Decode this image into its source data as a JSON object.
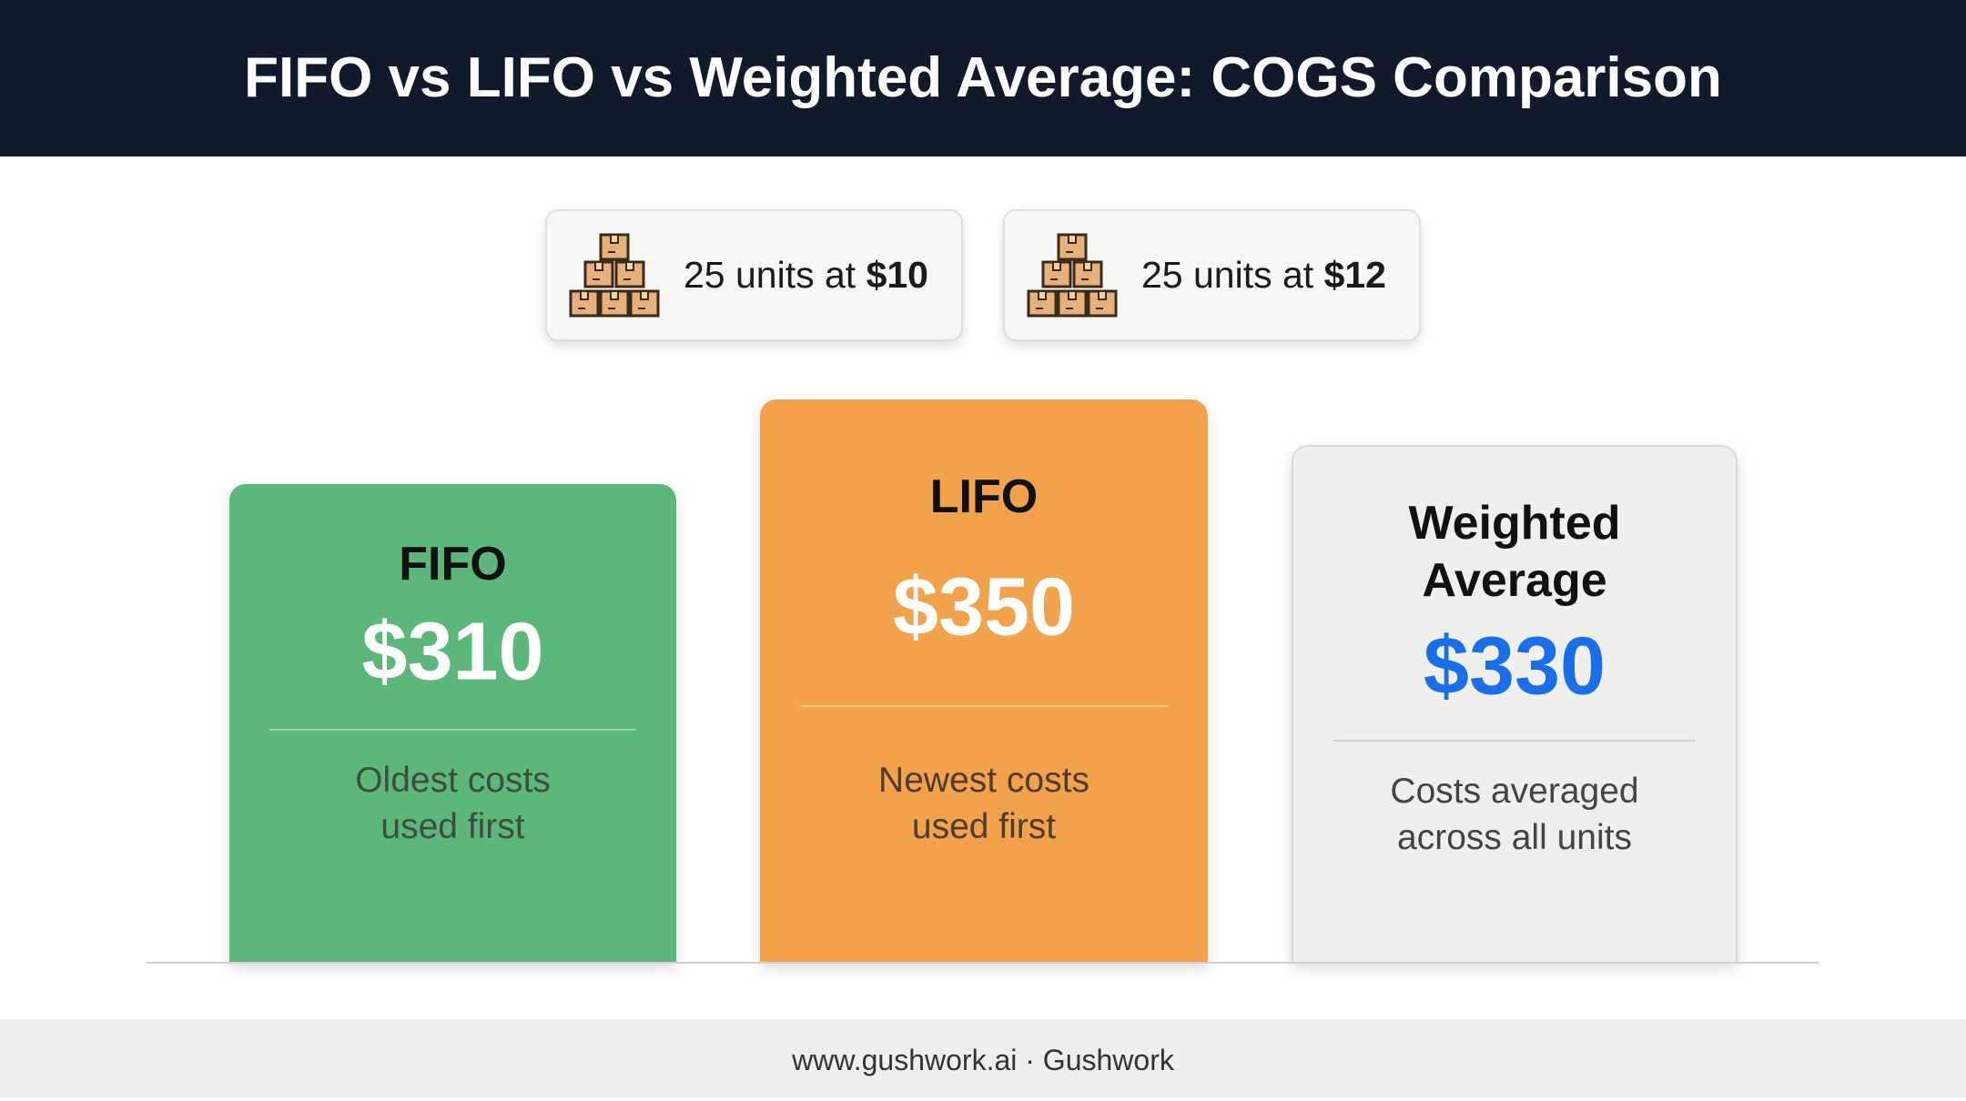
{
  "header": {
    "title": "FIFO vs LIFO vs Weighted Average: COGS Comparison"
  },
  "lots": [
    {
      "text": "25 units at ",
      "price": "$10"
    },
    {
      "text": "25 units at ",
      "price": "$12"
    }
  ],
  "methods": [
    {
      "name": [
        "FIFO"
      ],
      "cogs": "$310",
      "description": [
        "Oldest costs",
        "used first"
      ]
    },
    {
      "name": [
        "LIFO"
      ],
      "cogs": "$350",
      "description": [
        "Newest costs",
        "used first"
      ]
    },
    {
      "name": [
        "Weighted",
        "Average"
      ],
      "cogs": "$330",
      "description": [
        "Costs averaged",
        "across all units"
      ]
    }
  ],
  "footer": {
    "text": "www.gushwork.ai · Gushwork"
  }
}
